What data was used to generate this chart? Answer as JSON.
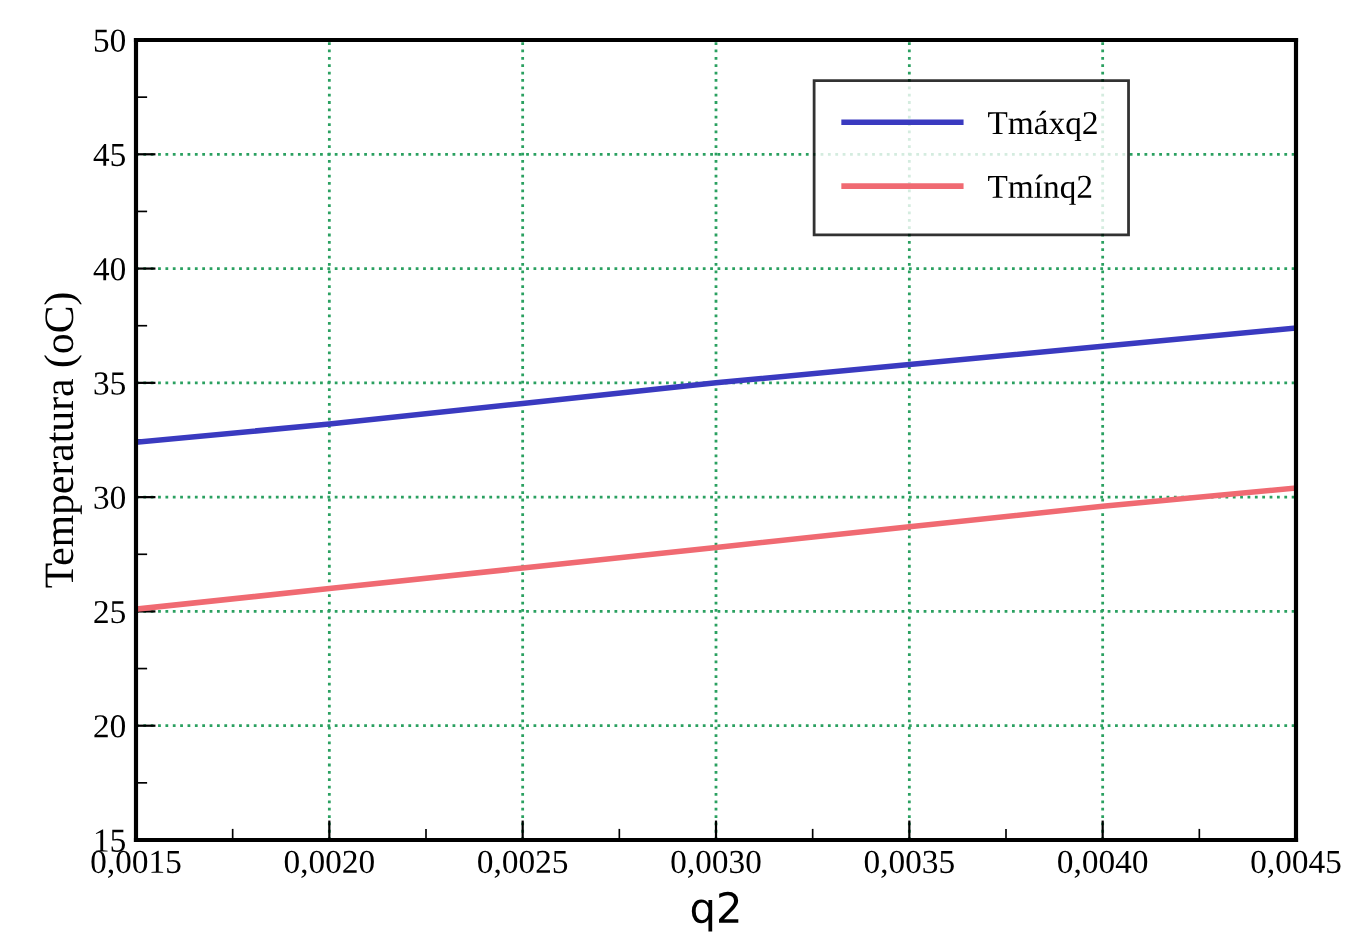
{
  "chart_data": {
    "type": "line",
    "xlabel": "q2",
    "ylabel": "Temperatura (oC)",
    "x": [
      0.0015,
      0.002,
      0.0025,
      0.003,
      0.0035,
      0.004,
      0.0045
    ],
    "series": [
      {
        "name": "Tmáxq2",
        "color": "#3a3ac0",
        "values": [
          32.4,
          33.2,
          34.1,
          35.0,
          35.8,
          36.6,
          37.4
        ]
      },
      {
        "name": "Tmínq2",
        "color": "#f06a72",
        "values": [
          25.1,
          26.0,
          26.9,
          27.8,
          28.7,
          29.6,
          30.4
        ]
      }
    ],
    "xlim": [
      0.0015,
      0.0045
    ],
    "ylim": [
      15,
      50
    ],
    "xticks": [
      {
        "value": 0.0015,
        "label": "0,0015"
      },
      {
        "value": 0.002,
        "label": "0,0020"
      },
      {
        "value": 0.0025,
        "label": "0,0025"
      },
      {
        "value": 0.003,
        "label": "0,0030"
      },
      {
        "value": 0.0035,
        "label": "0,0035"
      },
      {
        "value": 0.004,
        "label": "0,0040"
      },
      {
        "value": 0.0045,
        "label": "0,0045"
      }
    ],
    "yticks": [
      15,
      20,
      25,
      30,
      35,
      40,
      45,
      50
    ],
    "grid": true,
    "legend": "top right",
    "marker": "none",
    "line_style": "solid"
  }
}
